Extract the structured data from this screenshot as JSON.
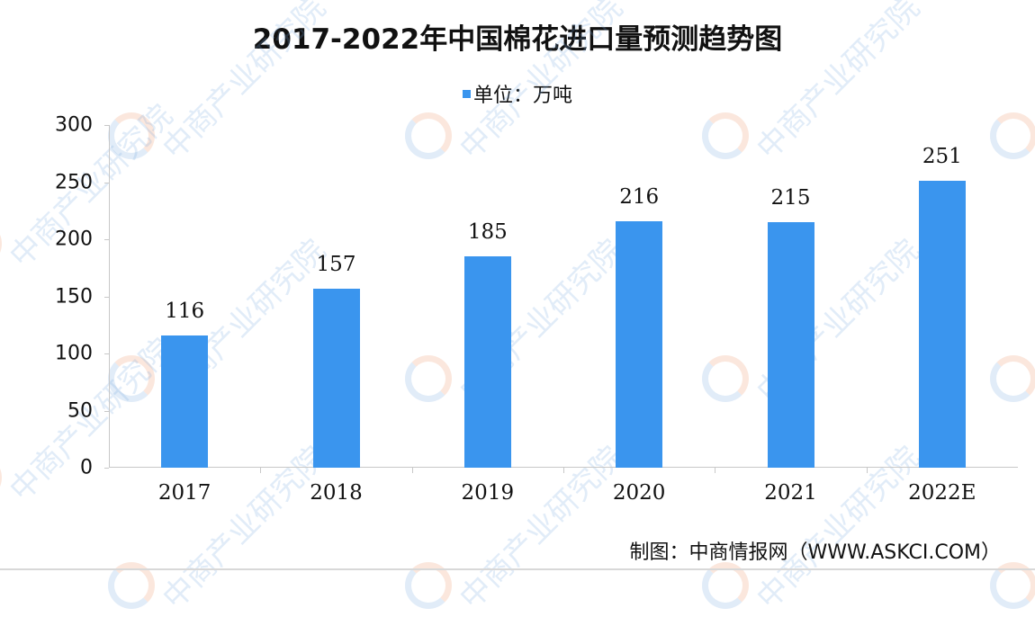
{
  "title": "2017-2022年中国棉花进口量预测趋势图",
  "legend": {
    "label": "单位：万吨",
    "color": "#3a95ee"
  },
  "source": "制图：中商情报网（WWW.ASKCI.COM）",
  "watermark": {
    "text": "中商产业研究院"
  },
  "y_axis": {
    "ticks": [
      "0",
      "50",
      "100",
      "150",
      "200",
      "250",
      "300"
    ]
  },
  "chart_data": {
    "type": "bar",
    "title": "2017-2022年中国棉花进口量预测趋势图",
    "xlabel": "",
    "ylabel": "",
    "unit": "万吨",
    "categories": [
      "2017",
      "2018",
      "2019",
      "2020",
      "2021",
      "2022E"
    ],
    "series": [
      {
        "name": "单位：万吨",
        "values": [
          116,
          157,
          185,
          216,
          215,
          251
        ],
        "color": "#3a95ee"
      }
    ],
    "ylim": [
      0,
      300
    ],
    "yticks": [
      0,
      50,
      100,
      150,
      200,
      250,
      300
    ],
    "grid": false,
    "legend_position": "top",
    "data_labels": [
      "116",
      "157",
      "185",
      "216",
      "215",
      "251"
    ]
  }
}
